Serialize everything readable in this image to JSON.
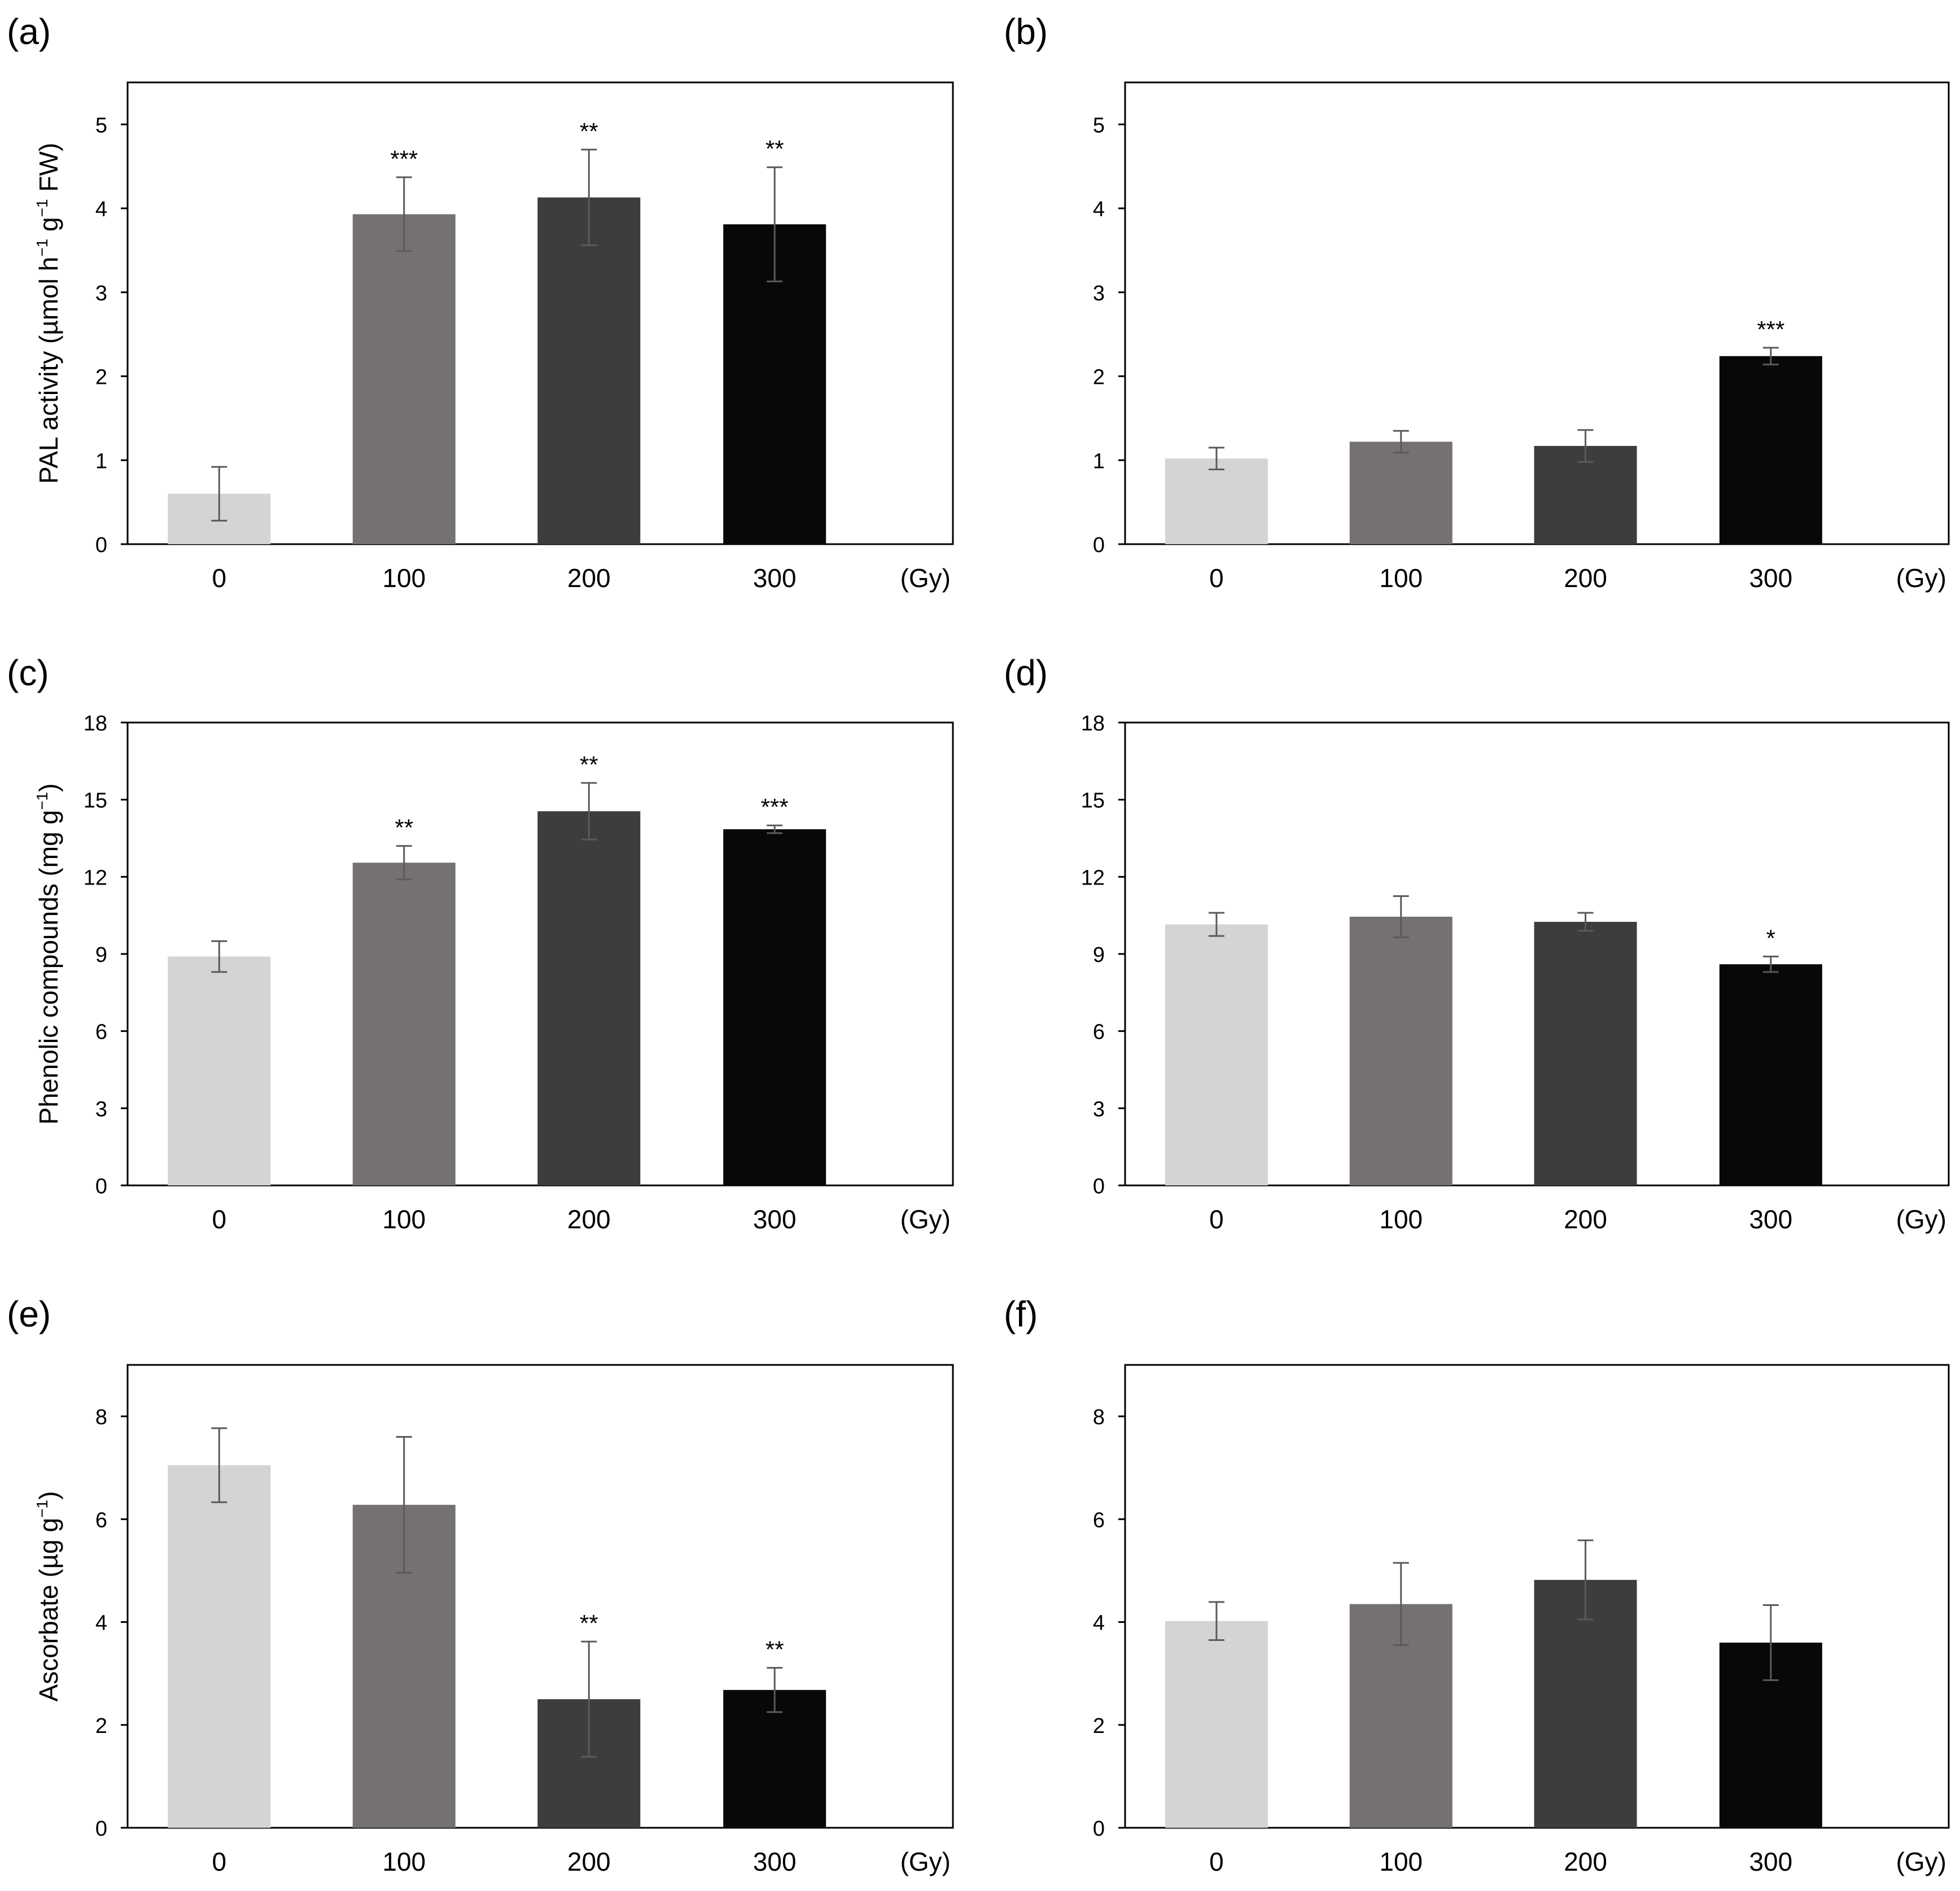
{
  "figure": {
    "unit": "(Gy)",
    "colors": [
      "#d6d3d3",
      "#757170",
      "#3d3d3d",
      "#080808"
    ]
  },
  "chart_data": [
    {
      "panel": "(a)",
      "type": "bar",
      "categories": [
        "0",
        "100",
        "200",
        "300"
      ],
      "values": [
        0.6,
        3.93,
        4.13,
        3.81
      ],
      "errors": [
        0.32,
        0.44,
        0.57,
        0.68
      ],
      "significance": [
        "",
        "***",
        "**",
        "**"
      ],
      "ylabel_text": "PAL activity (µmol h",
      "ylabel_mid": " g",
      "ylabel_end": " FW)",
      "ylabel_sup": "−1",
      "ylim": [
        0,
        5.5
      ],
      "yticks": [
        0,
        1,
        2,
        3,
        4,
        5
      ]
    },
    {
      "panel": "(b)",
      "type": "bar",
      "categories": [
        "0",
        "100",
        "200",
        "300"
      ],
      "values": [
        1.02,
        1.22,
        1.17,
        2.24
      ],
      "errors": [
        0.13,
        0.13,
        0.19,
        0.1
      ],
      "significance": [
        "",
        "",
        "",
        "***"
      ],
      "ylim": [
        0,
        5.5
      ],
      "yticks": [
        0,
        1,
        2,
        3,
        4,
        5
      ]
    },
    {
      "panel": "(c)",
      "type": "bar",
      "categories": [
        "0",
        "100",
        "200",
        "300"
      ],
      "values": [
        8.9,
        12.55,
        14.55,
        13.85
      ],
      "errors": [
        0.6,
        0.65,
        1.1,
        0.15
      ],
      "significance": [
        "",
        "**",
        "**",
        "***"
      ],
      "ylabel_text": "Phenolic compounds (mg g",
      "ylabel_end": ")",
      "ylabel_sup": "−1",
      "ylim": [
        0,
        18
      ],
      "yticks": [
        0,
        3,
        6,
        9,
        12,
        15,
        18
      ]
    },
    {
      "panel": "(d)",
      "type": "bar",
      "categories": [
        "0",
        "100",
        "200",
        "300"
      ],
      "values": [
        10.15,
        10.45,
        10.25,
        8.6
      ],
      "errors": [
        0.45,
        0.8,
        0.35,
        0.3
      ],
      "significance": [
        "",
        "",
        "",
        "*"
      ],
      "ylim": [
        0,
        18
      ],
      "yticks": [
        0,
        3,
        6,
        9,
        12,
        15,
        18
      ]
    },
    {
      "panel": "(e)",
      "type": "bar",
      "categories": [
        "0",
        "100",
        "200",
        "300"
      ],
      "values": [
        7.05,
        6.28,
        2.5,
        2.68
      ],
      "errors": [
        0.72,
        1.32,
        1.12,
        0.43
      ],
      "significance": [
        "",
        "",
        "**",
        "**"
      ],
      "ylabel_text": "Ascorbate (µg g",
      "ylabel_end": ")",
      "ylabel_sup": "−1",
      "ylim": [
        0,
        9
      ],
      "yticks": [
        0,
        2,
        4,
        6,
        8
      ]
    },
    {
      "panel": "(f)",
      "type": "bar",
      "categories": [
        "0",
        "100",
        "200",
        "300"
      ],
      "values": [
        4.02,
        4.35,
        4.82,
        3.6
      ],
      "errors": [
        0.37,
        0.8,
        0.77,
        0.73
      ],
      "significance": [
        "",
        "",
        "",
        ""
      ],
      "ylim": [
        0,
        9
      ],
      "yticks": [
        0,
        2,
        4,
        6,
        8
      ]
    }
  ]
}
